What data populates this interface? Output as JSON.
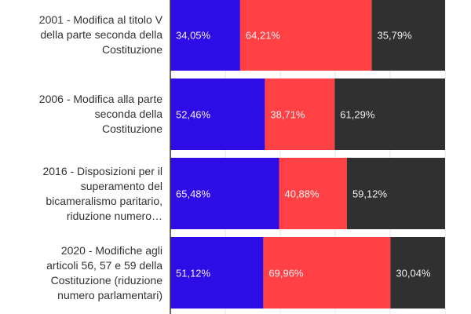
{
  "chart_data": {
    "type": "bar",
    "orientation": "horizontal",
    "stacked": "percent",
    "categories": [
      "2001 - Modifica al titolo V della parte seconda della Costituzione",
      "2006 - Modifica alla parte seconda della Costituzione",
      "2016 - Disposizioni per il superamento del bicameralismo paritario, riduzione numero…",
      "2020 - Modifiche agli articoli 56, 57 e 59 della Costituzione (riduzione numero parlamentari)"
    ],
    "category_lines": [
      [
        "2001 - Modifica al titolo V",
        "della parte seconda della",
        "Costituzione"
      ],
      [
        "2006 - Modifica alla parte",
        "seconda della",
        "Costituzione"
      ],
      [
        "2016 - Disposizioni per il",
        "superamento del",
        "bicameralismo paritario,",
        "riduzione numero…"
      ],
      [
        "2020 - Modifiche agli",
        "articoli 56, 57 e 59 della",
        "Costituzione (riduzione",
        "numero parlamentari)"
      ]
    ],
    "series": [
      {
        "values": [
          34.05,
          52.46,
          65.48,
          51.12
        ],
        "labels": [
          "34,05%",
          "52,46%",
          "65,48%",
          "51,12%"
        ],
        "color": "#2e0ce6"
      },
      {
        "values": [
          64.21,
          38.71,
          40.88,
          69.96
        ],
        "labels": [
          "64,21%",
          "38,71%",
          "40,88%",
          "69,96%"
        ],
        "color": "#ff4044"
      },
      {
        "values": [
          35.79,
          61.29,
          59.12,
          30.04
        ],
        "labels": [
          "35,79%",
          "61,29%",
          "59,12%",
          "30,04%"
        ],
        "color": "#303030"
      }
    ],
    "grid": true,
    "legend": "none"
  }
}
